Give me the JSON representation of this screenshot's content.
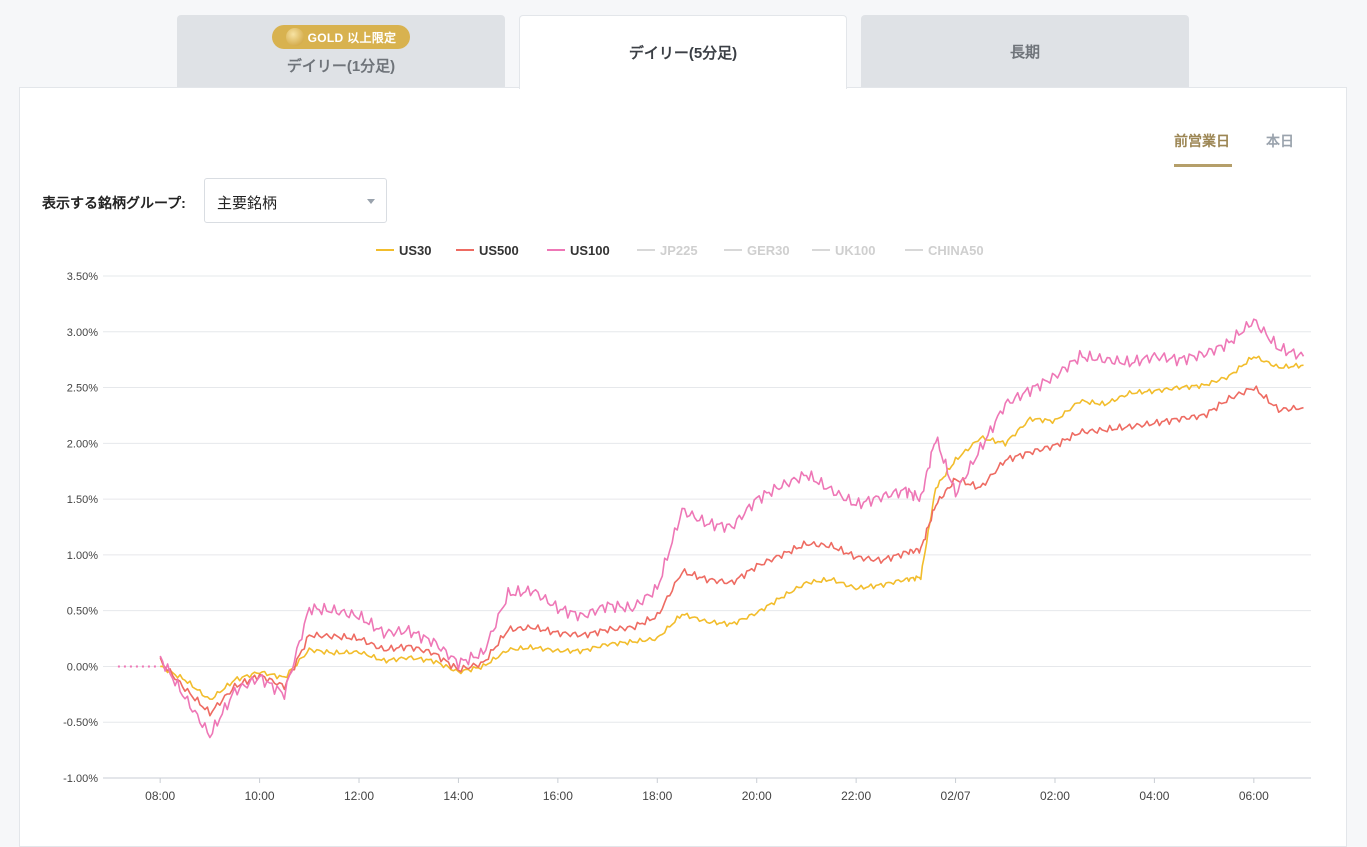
{
  "tabs": [
    {
      "label": "デイリー(1分足)",
      "badge": "GOLD 以上限定",
      "active": false
    },
    {
      "label": "デイリー(5分足)",
      "active": true
    },
    {
      "label": "長期",
      "active": false
    }
  ],
  "day_tabs": {
    "previous": "前営業日",
    "today": "本日",
    "selected": "previous"
  },
  "group_selector": {
    "label": "表示する銘柄グループ:",
    "value": "主要銘柄"
  },
  "colors": {
    "accent_gold": "#b59f6a",
    "badge_gold": "#d8b24f"
  },
  "chart_data": {
    "type": "line",
    "y_unit": "%",
    "ylim": [
      -1.0,
      3.5
    ],
    "yticks": [
      "3.50%",
      "3.00%",
      "2.50%",
      "2.00%",
      "1.50%",
      "1.00%",
      "0.50%",
      "0.00%",
      "-0.50%",
      "-1.00%"
    ],
    "xticks": [
      "08:00",
      "10:00",
      "12:00",
      "14:00",
      "16:00",
      "18:00",
      "20:00",
      "22:00",
      "02/07",
      "02:00",
      "04:00",
      "06:00"
    ],
    "grid": true,
    "legend_position": "top-center",
    "legend": [
      {
        "name": "US30",
        "color": "#f2bd2c",
        "active": true
      },
      {
        "name": "US500",
        "color": "#ee6b62",
        "active": true
      },
      {
        "name": "US100",
        "color": "#ee77b6",
        "active": true
      },
      {
        "name": "JP225",
        "color": "#d6d6d6",
        "active": false
      },
      {
        "name": "GER30",
        "color": "#d6d6d6",
        "active": false
      },
      {
        "name": "UK100",
        "color": "#d6d6d6",
        "active": false
      },
      {
        "name": "CHINA50",
        "color": "#d6d6d6",
        "active": false
      }
    ],
    "x_hours": [
      8,
      8.5,
      9,
      9.5,
      10,
      10.5,
      11,
      11.5,
      12,
      12.5,
      13,
      13.5,
      14,
      14.5,
      15,
      15.5,
      16,
      16.5,
      17,
      17.5,
      18,
      18.5,
      19,
      19.5,
      20,
      20.5,
      21,
      21.5,
      22,
      22.5,
      23,
      23.3,
      23.6,
      24,
      24.5,
      25,
      25.5,
      26,
      26.5,
      27,
      27.5,
      28,
      28.5,
      29,
      29.5,
      30,
      30.5,
      31
    ],
    "series": [
      {
        "name": "US30",
        "color": "#f2bd2c",
        "values": [
          0.0,
          -0.12,
          -0.3,
          -0.12,
          -0.05,
          -0.1,
          0.15,
          0.12,
          0.13,
          0.05,
          0.08,
          0.05,
          -0.05,
          0.0,
          0.15,
          0.17,
          0.14,
          0.14,
          0.2,
          0.22,
          0.25,
          0.47,
          0.4,
          0.38,
          0.48,
          0.62,
          0.75,
          0.78,
          0.7,
          0.73,
          0.78,
          0.8,
          1.6,
          1.85,
          2.05,
          2.0,
          2.22,
          2.2,
          2.38,
          2.35,
          2.45,
          2.47,
          2.5,
          2.52,
          2.6,
          2.78,
          2.68,
          2.7
        ]
      },
      {
        "name": "US500",
        "color": "#ee6b62",
        "values": [
          0.05,
          -0.2,
          -0.42,
          -0.18,
          -0.08,
          -0.18,
          0.28,
          0.27,
          0.25,
          0.15,
          0.18,
          0.12,
          -0.03,
          0.03,
          0.33,
          0.35,
          0.3,
          0.28,
          0.33,
          0.35,
          0.45,
          0.85,
          0.78,
          0.75,
          0.9,
          1.0,
          1.1,
          1.08,
          0.98,
          0.95,
          1.02,
          1.05,
          1.45,
          1.68,
          1.6,
          1.85,
          1.92,
          1.98,
          2.1,
          2.12,
          2.15,
          2.18,
          2.22,
          2.25,
          2.4,
          2.5,
          2.3,
          2.32
        ]
      },
      {
        "name": "US100",
        "color": "#ee77b6",
        "values": [
          0.08,
          -0.28,
          -0.62,
          -0.22,
          -0.1,
          -0.25,
          0.52,
          0.5,
          0.45,
          0.3,
          0.32,
          0.22,
          0.03,
          0.12,
          0.65,
          0.68,
          0.52,
          0.45,
          0.55,
          0.52,
          0.7,
          1.4,
          1.28,
          1.25,
          1.5,
          1.62,
          1.72,
          1.58,
          1.45,
          1.52,
          1.58,
          1.5,
          2.05,
          1.55,
          1.95,
          2.35,
          2.48,
          2.6,
          2.78,
          2.75,
          2.72,
          2.78,
          2.75,
          2.8,
          2.9,
          3.1,
          2.85,
          2.78
        ]
      }
    ]
  }
}
